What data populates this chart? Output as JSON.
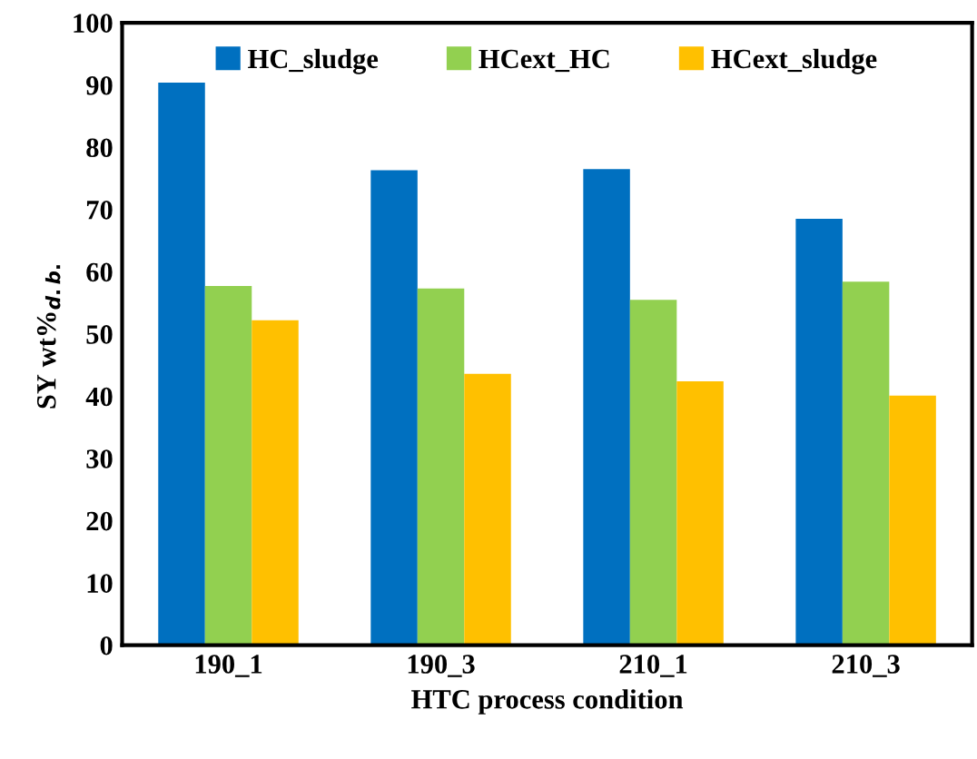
{
  "chart_data": {
    "type": "bar",
    "xlabel": "HTC process condition",
    "ylabel": "SY wt%$_{d.b.}$",
    "categories": [
      "190_1",
      "190_3",
      "210_1",
      "210_3"
    ],
    "series": [
      {
        "name": "HC_sludge",
        "color": "#0070c0",
        "values": [
          90.4,
          76.3,
          76.5,
          68.5
        ]
      },
      {
        "name": "HCext_HC",
        "color": "#92d050",
        "values": [
          57.7,
          57.3,
          55.5,
          58.4
        ]
      },
      {
        "name": "HCext_sludge",
        "color": "#ffc000",
        "values": [
          52.2,
          43.6,
          42.4,
          40.1
        ]
      }
    ],
    "ylim": [
      0,
      100
    ],
    "yticks": [
      0,
      10,
      20,
      30,
      40,
      50,
      60,
      70,
      80,
      90,
      100
    ],
    "grid": false,
    "legend": "top"
  }
}
